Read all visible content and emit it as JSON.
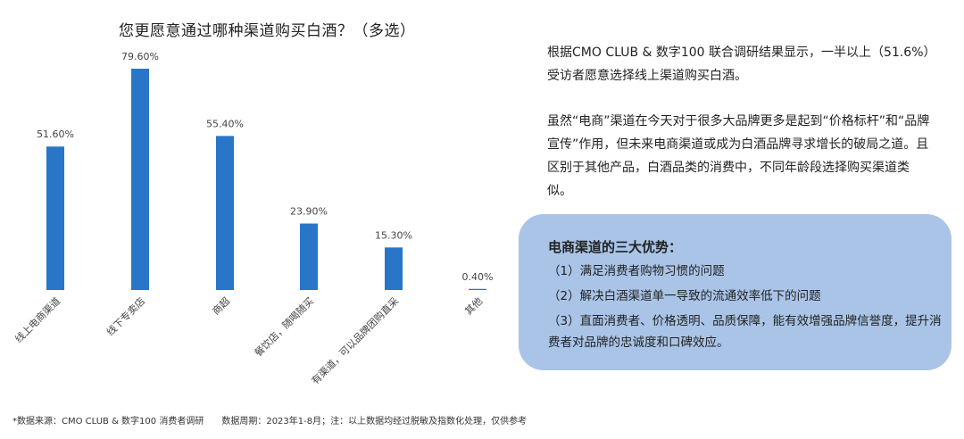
{
  "chart_data": {
    "type": "bar",
    "title": "您更愿意通过哪种渠道购买白酒？（多选）",
    "categories": [
      "线上电商渠道",
      "线下专卖店",
      "商超",
      "餐饮店，随喝随买",
      "有渠道，可以品牌团购直采",
      "其他"
    ],
    "values": [
      51.6,
      79.6,
      55.4,
      23.9,
      15.3,
      0.4
    ],
    "value_labels": [
      "51.60%",
      "79.60%",
      "55.40%",
      "23.90%",
      "15.30%",
      "0.40%"
    ],
    "unit": "%",
    "ylim": [
      0,
      80
    ],
    "grid": false,
    "legend": "none",
    "bar_color": "#2975c8"
  },
  "text": {
    "para1": "根据CMO CLUB & 数字100 联合调研结果显示，一半以上（51.6%）受访者愿意选择线上渠道购买白酒。",
    "para2": "虽然“电商”渠道在今天对于很多大品牌更多是起到“价格标杆”和“品牌宣传”作用，但未来电商渠道或成为白酒品牌寻求增长的破局之道。且区别于其他产品，白酒品类的消费中，不同年龄段选择购买渠道类似。"
  },
  "advantages": {
    "title": "电商渠道的三大优势：",
    "items": [
      "（1）满足消费者购物习惯的问题",
      "（2）解决白酒渠道单一导致的流通效率低下的问题",
      "（3）直面消费者、价格透明、品质保障，能有效增强品牌信誉度，提升消费者对品牌的忠诚度和口碑效应。"
    ],
    "box_color": "#a9c4e7"
  },
  "footer": {
    "source": "*数据来源：CMO CLUB & 数字100 消费者调研",
    "period": "数据周期：2023年1-8月；注：以上数据均经过脱敏及指数化处理，仅供参考"
  }
}
